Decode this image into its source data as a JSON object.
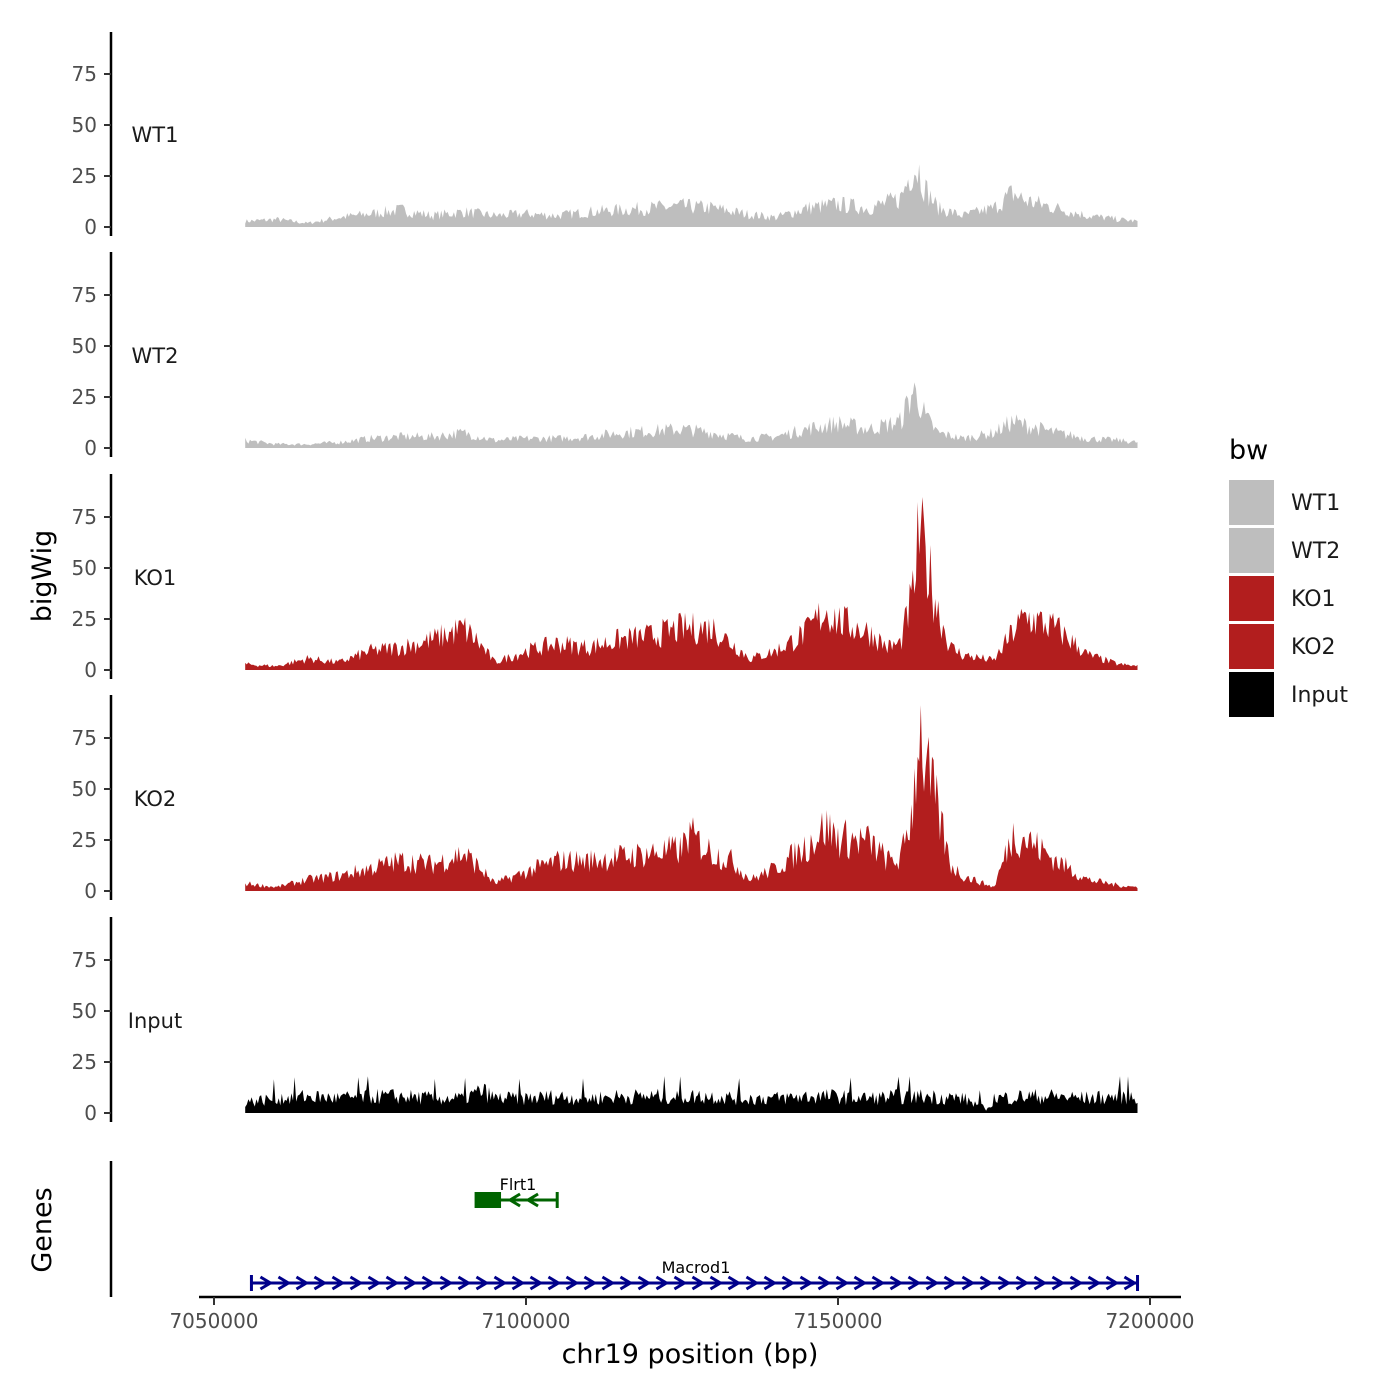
{
  "chart_data": {
    "type": "area",
    "xlabel": "chr19 position (bp)",
    "ylabel_tracks": "bigWig",
    "ylabel_genes": "Genes",
    "x_range": [
      7055000,
      7198000
    ],
    "xlim": [
      7049000,
      7201000
    ],
    "x_ticks": [
      7050000,
      7100000,
      7150000,
      7200000
    ],
    "x_tick_labels": [
      "7050000",
      "7100000",
      "7150000",
      "7200000"
    ],
    "y_range": [
      0,
      95
    ],
    "y_ticks": [
      0,
      25,
      50,
      75
    ],
    "y_tick_labels": [
      "0",
      "25",
      "50",
      "75"
    ],
    "legend": {
      "title": "bw",
      "position": "right",
      "entries": [
        {
          "label": "WT1",
          "color": "#bebebe"
        },
        {
          "label": "WT2",
          "color": "#bebebe"
        },
        {
          "label": "KO1",
          "color": "#b21e1e"
        },
        {
          "label": "KO2",
          "color": "#b21e1e"
        },
        {
          "label": "Input",
          "color": "#000000"
        }
      ]
    },
    "series": [
      {
        "name": "WT1",
        "color": "#bebebe",
        "positions": [
          7055000,
          7060000,
          7065000,
          7070000,
          7075000,
          7080000,
          7085000,
          7090000,
          7095000,
          7100000,
          7105000,
          7110000,
          7115000,
          7120000,
          7125000,
          7130000,
          7135000,
          7140000,
          7145000,
          7150000,
          7155000,
          7160000,
          7162000,
          7163000,
          7164000,
          7166000,
          7170000,
          7175000,
          7178000,
          7180000,
          7185000,
          7190000,
          7195000,
          7198000
        ],
        "values": [
          3,
          4,
          2,
          5,
          7,
          9,
          6,
          8,
          6,
          7,
          6,
          8,
          9,
          10,
          11,
          10,
          7,
          5,
          10,
          12,
          10,
          15,
          32,
          30,
          20,
          10,
          6,
          10,
          18,
          14,
          10,
          6,
          4,
          3
        ]
      },
      {
        "name": "WT2",
        "color": "#bebebe",
        "positions": [
          7055000,
          7060000,
          7065000,
          7070000,
          7075000,
          7080000,
          7085000,
          7090000,
          7095000,
          7100000,
          7105000,
          7110000,
          7115000,
          7120000,
          7125000,
          7130000,
          7135000,
          7140000,
          7145000,
          7150000,
          7155000,
          7160000,
          7162000,
          7163000,
          7164000,
          7166000,
          7170000,
          7175000,
          7178000,
          7180000,
          7185000,
          7190000,
          7195000,
          7198000
        ],
        "values": [
          4,
          2,
          2,
          3,
          5,
          6,
          6,
          8,
          4,
          5,
          5,
          6,
          8,
          9,
          10,
          8,
          5,
          6,
          10,
          13,
          10,
          14,
          30,
          26,
          16,
          8,
          5,
          8,
          14,
          12,
          8,
          5,
          4,
          3
        ]
      },
      {
        "name": "KO1",
        "color": "#b21e1e",
        "positions": [
          7055000,
          7060000,
          7065000,
          7070000,
          7075000,
          7080000,
          7085000,
          7090000,
          7092000,
          7095000,
          7100000,
          7105000,
          7110000,
          7115000,
          7120000,
          7125000,
          7130000,
          7133000,
          7136000,
          7140000,
          7145000,
          7148000,
          7150000,
          7155000,
          7158000,
          7160000,
          7162000,
          7163000,
          7164000,
          7166000,
          7168000,
          7170000,
          7175000,
          7178000,
          7180000,
          7185000,
          7190000,
          7195000,
          7198000
        ],
        "values": [
          3,
          2,
          6,
          4,
          10,
          12,
          16,
          22,
          16,
          4,
          10,
          14,
          12,
          16,
          18,
          22,
          22,
          14,
          6,
          10,
          20,
          32,
          26,
          20,
          12,
          14,
          40,
          72,
          60,
          32,
          12,
          8,
          5,
          20,
          28,
          22,
          8,
          3,
          2
        ]
      },
      {
        "name": "KO2",
        "color": "#b21e1e",
        "positions": [
          7055000,
          7060000,
          7065000,
          7070000,
          7075000,
          7080000,
          7085000,
          7090000,
          7092000,
          7095000,
          7100000,
          7105000,
          7110000,
          7115000,
          7120000,
          7125000,
          7126000,
          7130000,
          7133000,
          7136000,
          7140000,
          7145000,
          7148000,
          7150000,
          7155000,
          7158000,
          7160000,
          7162000,
          7163000,
          7164000,
          7166000,
          7168000,
          7170000,
          7175000,
          7178000,
          7180000,
          7185000,
          7190000,
          7195000,
          7198000
        ],
        "values": [
          4,
          2,
          6,
          8,
          12,
          16,
          14,
          20,
          14,
          4,
          10,
          16,
          16,
          18,
          20,
          22,
          30,
          20,
          16,
          6,
          12,
          24,
          34,
          28,
          26,
          16,
          16,
          45,
          90,
          66,
          42,
          14,
          8,
          2,
          30,
          28,
          16,
          6,
          3,
          2
        ]
      },
      {
        "name": "Input",
        "color": "#000000",
        "positions": [
          7055000,
          7060000,
          7065000,
          7070000,
          7075000,
          7080000,
          7085000,
          7090000,
          7093000,
          7095000,
          7100000,
          7105000,
          7110000,
          7115000,
          7120000,
          7125000,
          7130000,
          7135000,
          7140000,
          7145000,
          7150000,
          7155000,
          7160000,
          7165000,
          7170000,
          7174000,
          7175000,
          7180000,
          7185000,
          7190000,
          7195000,
          7198000
        ],
        "values": [
          6,
          8,
          9,
          8,
          9,
          9,
          8,
          8,
          12,
          8,
          8,
          9,
          8,
          9,
          9,
          9,
          9,
          8,
          8,
          9,
          9,
          8,
          9,
          9,
          8,
          2,
          8,
          9,
          9,
          8,
          9,
          9
        ]
      }
    ],
    "genes": [
      {
        "name": "Flrt1",
        "start": 7092000,
        "end": 7105000,
        "strand": "-",
        "color": "#006400",
        "cds_start": 7092000,
        "cds_end": 7096000
      },
      {
        "name": "Macrod1",
        "start": 7056000,
        "end": 7198000,
        "strand": "+",
        "color": "#00008b"
      }
    ]
  }
}
